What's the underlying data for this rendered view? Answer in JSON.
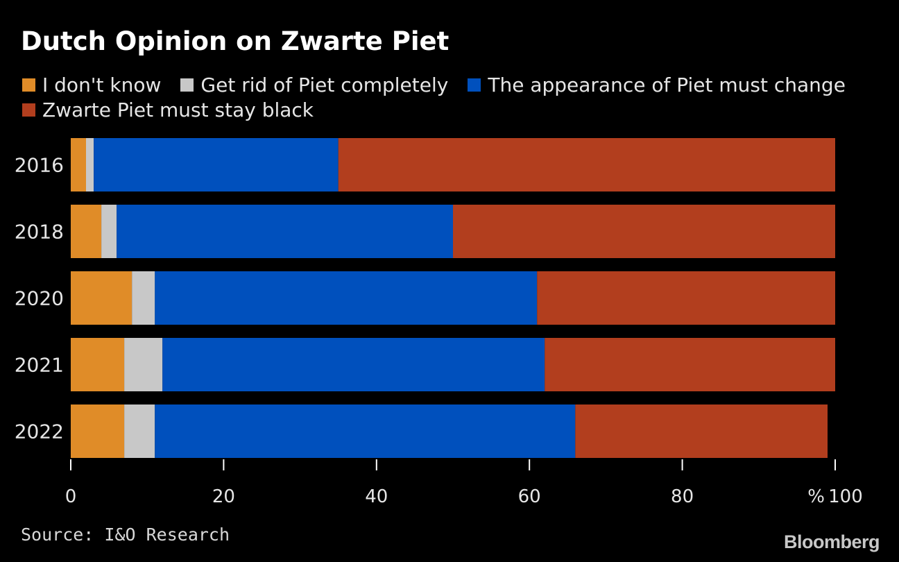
{
  "chart_data": {
    "type": "bar",
    "orientation": "horizontal",
    "stacked": true,
    "title": "Dutch Opinion on Zwarte Piet",
    "categories": [
      "2016",
      "2018",
      "2020",
      "2021",
      "2022"
    ],
    "series": [
      {
        "name": "I don't know",
        "color": "#e08c28",
        "values": [
          2,
          4,
          8,
          7,
          7
        ]
      },
      {
        "name": "Get rid of Piet completely",
        "color": "#c8c8c8",
        "values": [
          1,
          2,
          3,
          5,
          4
        ]
      },
      {
        "name": "The appearance of Piet must change",
        "color": "#0050bd",
        "values": [
          32,
          44,
          50,
          50,
          55
        ]
      },
      {
        "name": "Zwarte Piet must stay black",
        "color": "#b23e1e",
        "values": [
          65,
          50,
          39,
          38,
          33
        ]
      }
    ],
    "xlim": [
      0,
      100
    ],
    "xticks": [
      "0",
      "20",
      "40",
      "60",
      "80",
      "100"
    ],
    "xunit": "%",
    "xlabel": "",
    "ylabel": "",
    "grid": false,
    "legend_position": "top"
  },
  "source": "Source: I&O Research",
  "brand": "Bloomberg"
}
